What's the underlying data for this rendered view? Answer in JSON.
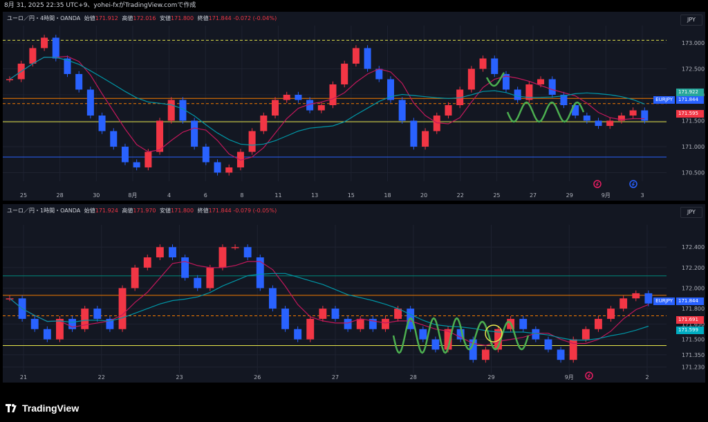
{
  "header": {
    "title": "8月 31, 2025 22:35 UTC+9、yohei-fxがTradingView.comで作成"
  },
  "colors": {
    "bg": "#131722",
    "grid": "#1e2230",
    "up": "#f23645",
    "down": "#2962ff",
    "ma_short": "#c2185b",
    "ma_long": "#0097a7",
    "wave": "#4caf50",
    "orange": "#f57c00",
    "yellow": "#e8e84c",
    "blue_line": "#2962ff",
    "teal_line": "#00897b"
  },
  "chart_data": [
    {
      "type": "candlestick",
      "title": "ユーロ／円・4時間・OANDA",
      "ohlc": {
        "open_label": "始値",
        "open": "171.912",
        "high_label": "高値",
        "high": "172.016",
        "low_label": "安値",
        "low": "171.800",
        "close_label": "終値",
        "close": "171.844",
        "change": "-0.072 (-0.04%)"
      },
      "currency": "JPY",
      "symbol": "EURJPY",
      "price_tags": {
        "top": "171.922",
        "current": "171.844",
        "red": "171.595"
      },
      "y_ticks": [
        "173.000",
        "172.500",
        "172.000",
        "171.500",
        "171.000",
        "170.500"
      ],
      "ylim": [
        170.4,
        173.2
      ],
      "x_ticks": [
        "25",
        "28",
        "30",
        "8月",
        "4",
        "6",
        "8",
        "11",
        "13",
        "15",
        "18",
        "20",
        "22",
        "25",
        "27",
        "29",
        "9月",
        "3"
      ],
      "h_lines": [
        {
          "value": 173.05,
          "style": "dashed",
          "color": "yellow"
        },
        {
          "value": 171.93,
          "style": "solid",
          "color": "orange"
        },
        {
          "value": 171.83,
          "style": "dashed",
          "color": "orange"
        },
        {
          "value": 171.48,
          "style": "solid",
          "color": "yellow"
        },
        {
          "value": 170.8,
          "style": "solid",
          "color": "blue_line"
        }
      ],
      "closes": [
        172.3,
        172.6,
        172.9,
        173.1,
        172.7,
        172.4,
        172.1,
        171.6,
        171.3,
        171.0,
        170.7,
        170.6,
        170.9,
        171.5,
        171.9,
        171.5,
        171.0,
        170.7,
        170.5,
        170.6,
        170.9,
        171.3,
        171.6,
        171.9,
        172.0,
        171.9,
        171.7,
        171.8,
        172.2,
        172.6,
        172.9,
        172.5,
        172.3,
        171.9,
        171.5,
        171.0,
        171.3,
        171.6,
        171.8,
        172.1,
        172.5,
        172.7,
        172.4,
        172.1,
        171.9,
        172.2,
        172.3,
        172.0,
        171.8,
        171.6,
        171.5,
        171.4,
        171.5,
        171.6,
        171.7,
        171.5
      ]
    },
    {
      "type": "candlestick",
      "title": "ユーロ／円・1時間・OANDA",
      "ohlc": {
        "open_label": "始値",
        "open": "171.924",
        "high_label": "高値",
        "high": "171.970",
        "low_label": "安値",
        "low": "171.800",
        "close_label": "終値",
        "close": "171.844",
        "change": "-0.079 (-0.05%)"
      },
      "currency": "JPY",
      "symbol": "EURJPY",
      "price_tags": {
        "current": "171.844",
        "red": "171.691",
        "teal": "171.599"
      },
      "y_ticks": [
        "172.400",
        "172.200",
        "172.000",
        "171.800",
        "171.650",
        "171.500",
        "171.350",
        "171.230"
      ],
      "ylim": [
        171.2,
        172.55
      ],
      "x_ticks": [
        "21",
        "22",
        "23",
        "26",
        "27",
        "28",
        "29",
        "9月",
        "2"
      ],
      "h_lines": [
        {
          "value": 172.12,
          "style": "solid",
          "color": "teal_line"
        },
        {
          "value": 171.93,
          "style": "solid",
          "color": "orange"
        },
        {
          "value": 171.73,
          "style": "dashed",
          "color": "orange"
        },
        {
          "value": 171.44,
          "style": "solid",
          "color": "yellow"
        }
      ],
      "closes": [
        171.9,
        171.7,
        171.6,
        171.5,
        171.7,
        171.6,
        171.8,
        171.7,
        171.6,
        172.0,
        172.2,
        172.3,
        172.4,
        172.3,
        172.1,
        172.0,
        172.2,
        172.4,
        172.4,
        172.3,
        172.0,
        171.8,
        171.6,
        171.5,
        171.7,
        171.8,
        171.7,
        171.6,
        171.7,
        171.6,
        171.7,
        171.8,
        171.6,
        171.5,
        171.4,
        171.6,
        171.5,
        171.3,
        171.4,
        171.6,
        171.7,
        171.6,
        171.5,
        171.4,
        171.3,
        171.5,
        171.6,
        171.7,
        171.8,
        171.9,
        171.95,
        171.85
      ]
    }
  ],
  "footer": {
    "brand": "TradingView"
  }
}
